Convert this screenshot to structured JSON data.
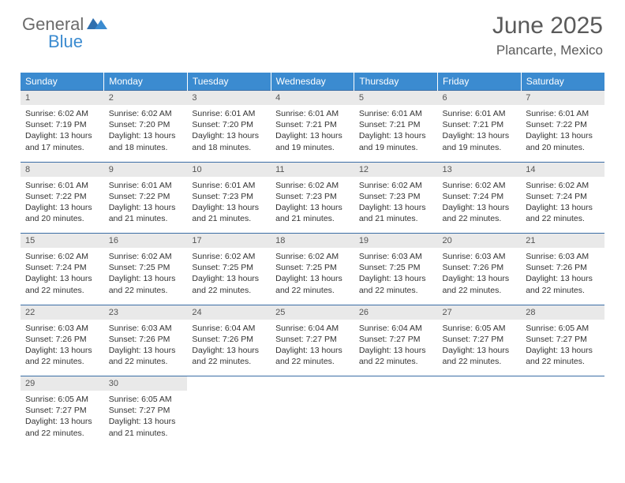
{
  "brand": {
    "word1": "General",
    "word2": "Blue"
  },
  "title": "June 2025",
  "location": "Plancarte, Mexico",
  "header_bg": "#3b8bd0",
  "daynum_bg": "#e9e9e9",
  "border_color": "#3b6ea5",
  "weekdays": [
    "Sunday",
    "Monday",
    "Tuesday",
    "Wednesday",
    "Thursday",
    "Friday",
    "Saturday"
  ],
  "weeks": [
    [
      {
        "n": "1",
        "sr": "6:02 AM",
        "ss": "7:19 PM",
        "dl": "13 hours and 17 minutes."
      },
      {
        "n": "2",
        "sr": "6:02 AM",
        "ss": "7:20 PM",
        "dl": "13 hours and 18 minutes."
      },
      {
        "n": "3",
        "sr": "6:01 AM",
        "ss": "7:20 PM",
        "dl": "13 hours and 18 minutes."
      },
      {
        "n": "4",
        "sr": "6:01 AM",
        "ss": "7:21 PM",
        "dl": "13 hours and 19 minutes."
      },
      {
        "n": "5",
        "sr": "6:01 AM",
        "ss": "7:21 PM",
        "dl": "13 hours and 19 minutes."
      },
      {
        "n": "6",
        "sr": "6:01 AM",
        "ss": "7:21 PM",
        "dl": "13 hours and 19 minutes."
      },
      {
        "n": "7",
        "sr": "6:01 AM",
        "ss": "7:22 PM",
        "dl": "13 hours and 20 minutes."
      }
    ],
    [
      {
        "n": "8",
        "sr": "6:01 AM",
        "ss": "7:22 PM",
        "dl": "13 hours and 20 minutes."
      },
      {
        "n": "9",
        "sr": "6:01 AM",
        "ss": "7:22 PM",
        "dl": "13 hours and 21 minutes."
      },
      {
        "n": "10",
        "sr": "6:01 AM",
        "ss": "7:23 PM",
        "dl": "13 hours and 21 minutes."
      },
      {
        "n": "11",
        "sr": "6:02 AM",
        "ss": "7:23 PM",
        "dl": "13 hours and 21 minutes."
      },
      {
        "n": "12",
        "sr": "6:02 AM",
        "ss": "7:23 PM",
        "dl": "13 hours and 21 minutes."
      },
      {
        "n": "13",
        "sr": "6:02 AM",
        "ss": "7:24 PM",
        "dl": "13 hours and 22 minutes."
      },
      {
        "n": "14",
        "sr": "6:02 AM",
        "ss": "7:24 PM",
        "dl": "13 hours and 22 minutes."
      }
    ],
    [
      {
        "n": "15",
        "sr": "6:02 AM",
        "ss": "7:24 PM",
        "dl": "13 hours and 22 minutes."
      },
      {
        "n": "16",
        "sr": "6:02 AM",
        "ss": "7:25 PM",
        "dl": "13 hours and 22 minutes."
      },
      {
        "n": "17",
        "sr": "6:02 AM",
        "ss": "7:25 PM",
        "dl": "13 hours and 22 minutes."
      },
      {
        "n": "18",
        "sr": "6:02 AM",
        "ss": "7:25 PM",
        "dl": "13 hours and 22 minutes."
      },
      {
        "n": "19",
        "sr": "6:03 AM",
        "ss": "7:25 PM",
        "dl": "13 hours and 22 minutes."
      },
      {
        "n": "20",
        "sr": "6:03 AM",
        "ss": "7:26 PM",
        "dl": "13 hours and 22 minutes."
      },
      {
        "n": "21",
        "sr": "6:03 AM",
        "ss": "7:26 PM",
        "dl": "13 hours and 22 minutes."
      }
    ],
    [
      {
        "n": "22",
        "sr": "6:03 AM",
        "ss": "7:26 PM",
        "dl": "13 hours and 22 minutes."
      },
      {
        "n": "23",
        "sr": "6:03 AM",
        "ss": "7:26 PM",
        "dl": "13 hours and 22 minutes."
      },
      {
        "n": "24",
        "sr": "6:04 AM",
        "ss": "7:26 PM",
        "dl": "13 hours and 22 minutes."
      },
      {
        "n": "25",
        "sr": "6:04 AM",
        "ss": "7:27 PM",
        "dl": "13 hours and 22 minutes."
      },
      {
        "n": "26",
        "sr": "6:04 AM",
        "ss": "7:27 PM",
        "dl": "13 hours and 22 minutes."
      },
      {
        "n": "27",
        "sr": "6:05 AM",
        "ss": "7:27 PM",
        "dl": "13 hours and 22 minutes."
      },
      {
        "n": "28",
        "sr": "6:05 AM",
        "ss": "7:27 PM",
        "dl": "13 hours and 22 minutes."
      }
    ],
    [
      {
        "n": "29",
        "sr": "6:05 AM",
        "ss": "7:27 PM",
        "dl": "13 hours and 22 minutes."
      },
      {
        "n": "30",
        "sr": "6:05 AM",
        "ss": "7:27 PM",
        "dl": "13 hours and 21 minutes."
      },
      null,
      null,
      null,
      null,
      null
    ]
  ],
  "labels": {
    "sunrise": "Sunrise:",
    "sunset": "Sunset:",
    "daylight": "Daylight:"
  }
}
